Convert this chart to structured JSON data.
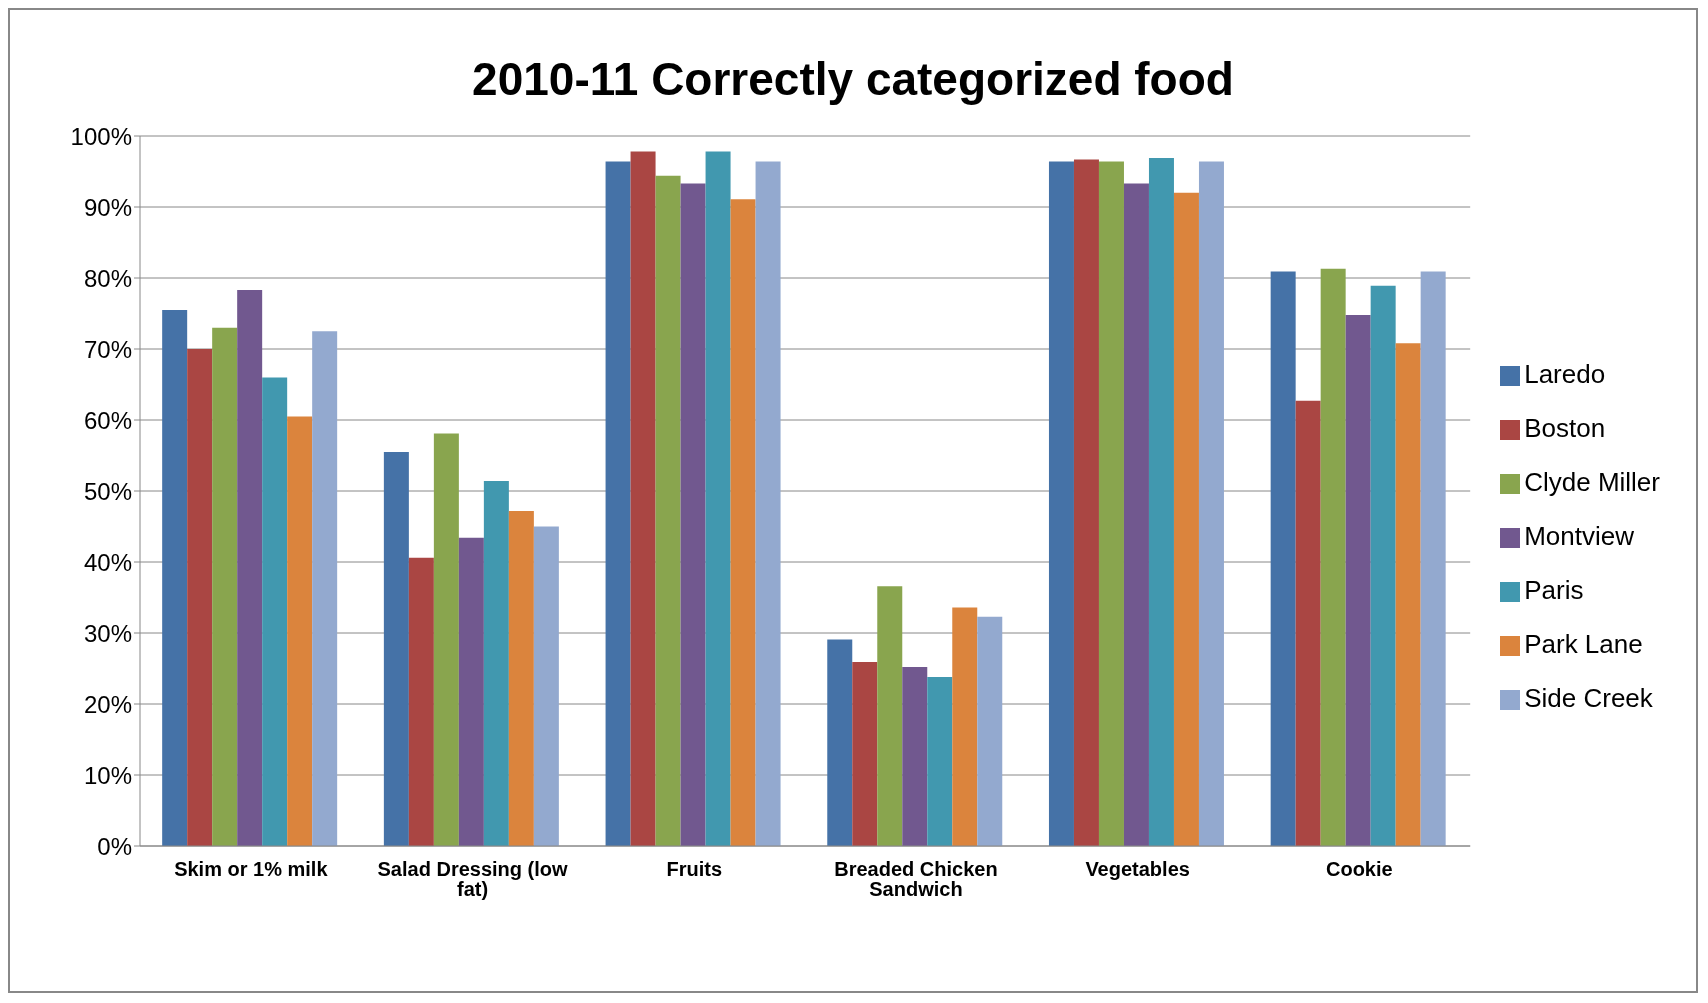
{
  "chart_data": {
    "type": "bar",
    "title": "2010-11 Correctly categorized food",
    "categories": [
      "Skim or 1% milk",
      "Salad Dressing (low fat)",
      "Fruits",
      "Breaded Chicken Sandwich",
      "Vegetables",
      "Cookie"
    ],
    "series": [
      {
        "name": "Laredo",
        "color": "#4572a7",
        "values": [
          75.5,
          55.5,
          96.4,
          29.1,
          96.4,
          80.9
        ]
      },
      {
        "name": "Boston",
        "color": "#aa4643",
        "values": [
          70,
          40.6,
          97.8,
          25.9,
          96.7,
          62.7
        ]
      },
      {
        "name": "Clyde Miller",
        "color": "#89a54e",
        "values": [
          73,
          58.1,
          94.4,
          36.6,
          96.4,
          81.3
        ]
      },
      {
        "name": "Montview",
        "color": "#71588f",
        "values": [
          78.3,
          43.4,
          93.3,
          25.2,
          93.3,
          74.8
        ]
      },
      {
        "name": "Paris",
        "color": "#4198af",
        "values": [
          66,
          51.4,
          97.8,
          23.8,
          96.9,
          78.9
        ]
      },
      {
        "name": "Park Lane",
        "color": "#db843d",
        "values": [
          60.5,
          47.2,
          91.1,
          33.6,
          92,
          70.8
        ]
      },
      {
        "name": "Side Creek",
        "color": "#93a9cf",
        "values": [
          72.5,
          45,
          96.4,
          32.3,
          96.4,
          80.9
        ]
      }
    ],
    "ylim": [
      0,
      100
    ],
    "yticks": [
      {
        "value": 0,
        "label": "0%"
      },
      {
        "value": 10,
        "label": "10%"
      },
      {
        "value": 20,
        "label": "20%"
      },
      {
        "value": 30,
        "label": "30%"
      },
      {
        "value": 40,
        "label": "40%"
      },
      {
        "value": 50,
        "label": "50%"
      },
      {
        "value": 60,
        "label": "60%"
      },
      {
        "value": 70,
        "label": "70%"
      },
      {
        "value": 80,
        "label": "80%"
      },
      {
        "value": 90,
        "label": "90%"
      },
      {
        "value": 100,
        "label": "100%"
      }
    ],
    "grid": "y",
    "legend": "right"
  }
}
